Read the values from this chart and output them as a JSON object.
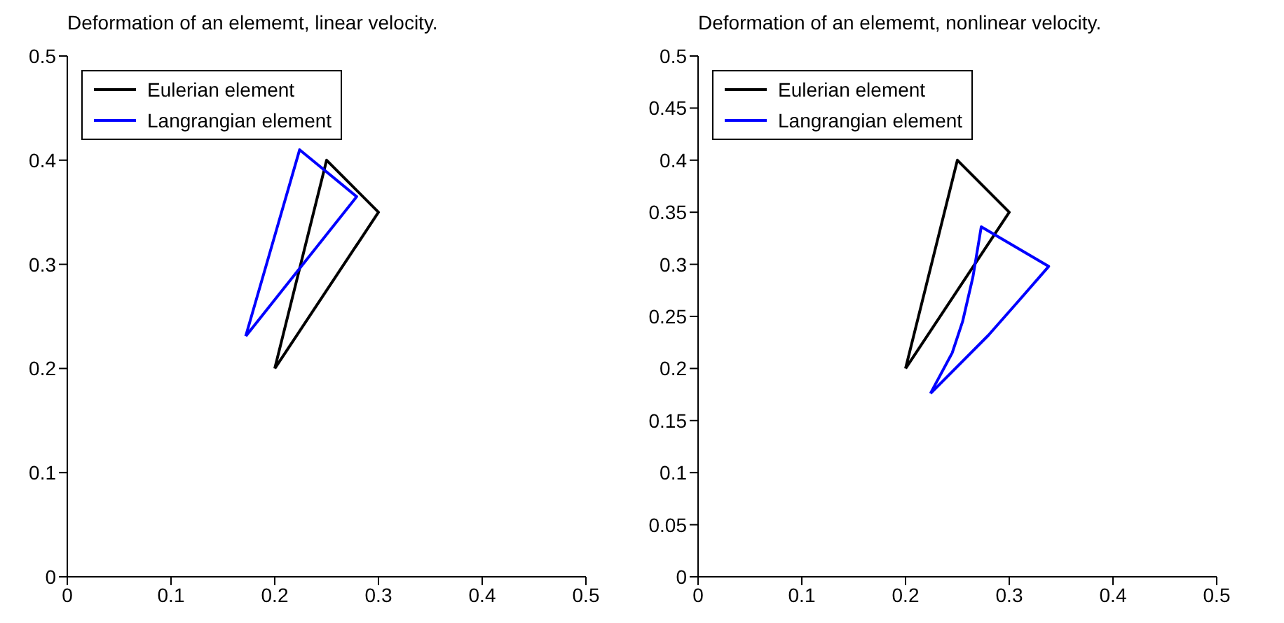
{
  "chart_data": [
    {
      "type": "line",
      "title": "Deformation of an elememt, linear velocity.",
      "xlim": [
        0,
        0.5
      ],
      "ylim": [
        0,
        0.5
      ],
      "xticks": [
        0,
        0.1,
        0.2,
        0.3,
        0.4,
        0.5
      ],
      "yticks": [
        0,
        0.1,
        0.2,
        0.3,
        0.4,
        0.5
      ],
      "legend": "top left",
      "marker": "none",
      "line_style": "solid",
      "grid": false,
      "series": [
        {
          "name": "Eulerian element",
          "color": "#000000",
          "x": [
            0.2,
            0.25,
            0.3,
            0.2001
          ],
          "values": [
            0.2,
            0.4,
            0.35,
            0.2
          ]
        },
        {
          "name": "Langrangian element",
          "color": "#0000ff",
          "x": [
            0.172,
            0.224,
            0.279,
            0.1721
          ],
          "values": [
            0.231,
            0.41,
            0.365,
            0.231
          ]
        }
      ]
    },
    {
      "type": "line",
      "title": "Deformation of an elememt, nonlinear velocity.",
      "xlim": [
        0,
        0.5
      ],
      "ylim": [
        0,
        0.5
      ],
      "xticks": [
        0,
        0.1,
        0.2,
        0.3,
        0.4,
        0.5
      ],
      "yticks": [
        0,
        0.05,
        0.1,
        0.15,
        0.2,
        0.25,
        0.3,
        0.35,
        0.4,
        0.45,
        0.5
      ],
      "legend": "top left",
      "marker": "none",
      "line_style": "solid",
      "grid": false,
      "series": [
        {
          "name": "Eulerian element",
          "color": "#000000",
          "x": [
            0.2,
            0.25,
            0.3,
            0.2001
          ],
          "values": [
            0.2,
            0.4,
            0.35,
            0.2
          ]
        },
        {
          "name": "Langrangian element",
          "color": "#0000ff",
          "x": [
            0.224,
            0.245,
            0.255,
            0.265,
            0.273,
            0.338,
            0.31,
            0.28,
            0.2241
          ],
          "values": [
            0.176,
            0.215,
            0.245,
            0.288,
            0.336,
            0.298,
            0.266,
            0.232,
            0.176
          ]
        }
      ]
    }
  ]
}
